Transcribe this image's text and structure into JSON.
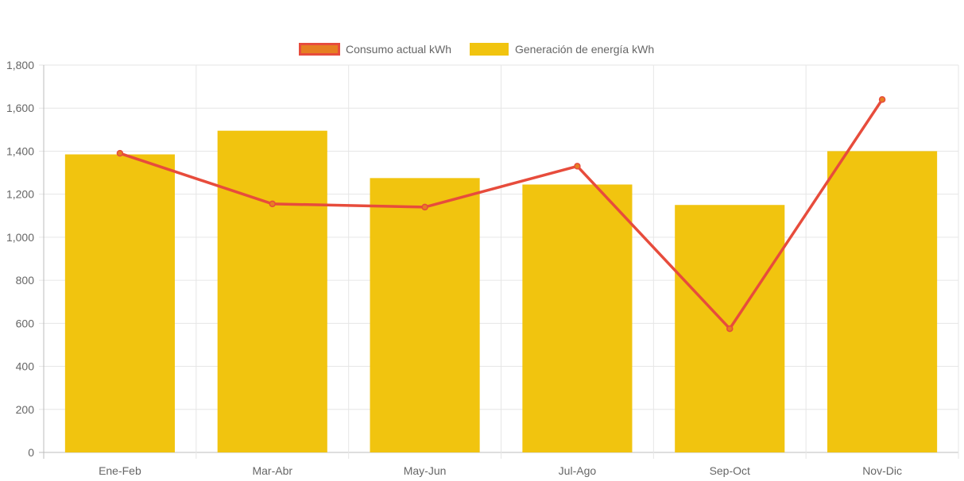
{
  "chart_data": {
    "type": "bar",
    "categories": [
      "Ene-Feb",
      "Mar-Abr",
      "May-Jun",
      "Jul-Ago",
      "Sep-Oct",
      "Nov-Dic"
    ],
    "series": [
      {
        "name": "Consumo actual kWh",
        "type": "line",
        "values": [
          1390,
          1155,
          1140,
          1330,
          575,
          1640
        ],
        "color": "#e74c3c",
        "point_color": "#e67e22"
      },
      {
        "name": "Generación de energía kWh",
        "type": "bar",
        "values": [
          1385,
          1495,
          1275,
          1245,
          1150,
          1400
        ],
        "color": "#f1c40f"
      }
    ],
    "ylim": [
      0,
      1800
    ],
    "yticks": [
      "0",
      "200",
      "400",
      "600",
      "800",
      "1,000",
      "1,200",
      "1,400",
      "1,600",
      "1,800"
    ],
    "ytick_values": [
      0,
      200,
      400,
      600,
      800,
      1000,
      1200,
      1400,
      1600,
      1800
    ],
    "legend_position": "top-center",
    "grid": true,
    "title": "",
    "xlabel": "",
    "ylabel": ""
  }
}
